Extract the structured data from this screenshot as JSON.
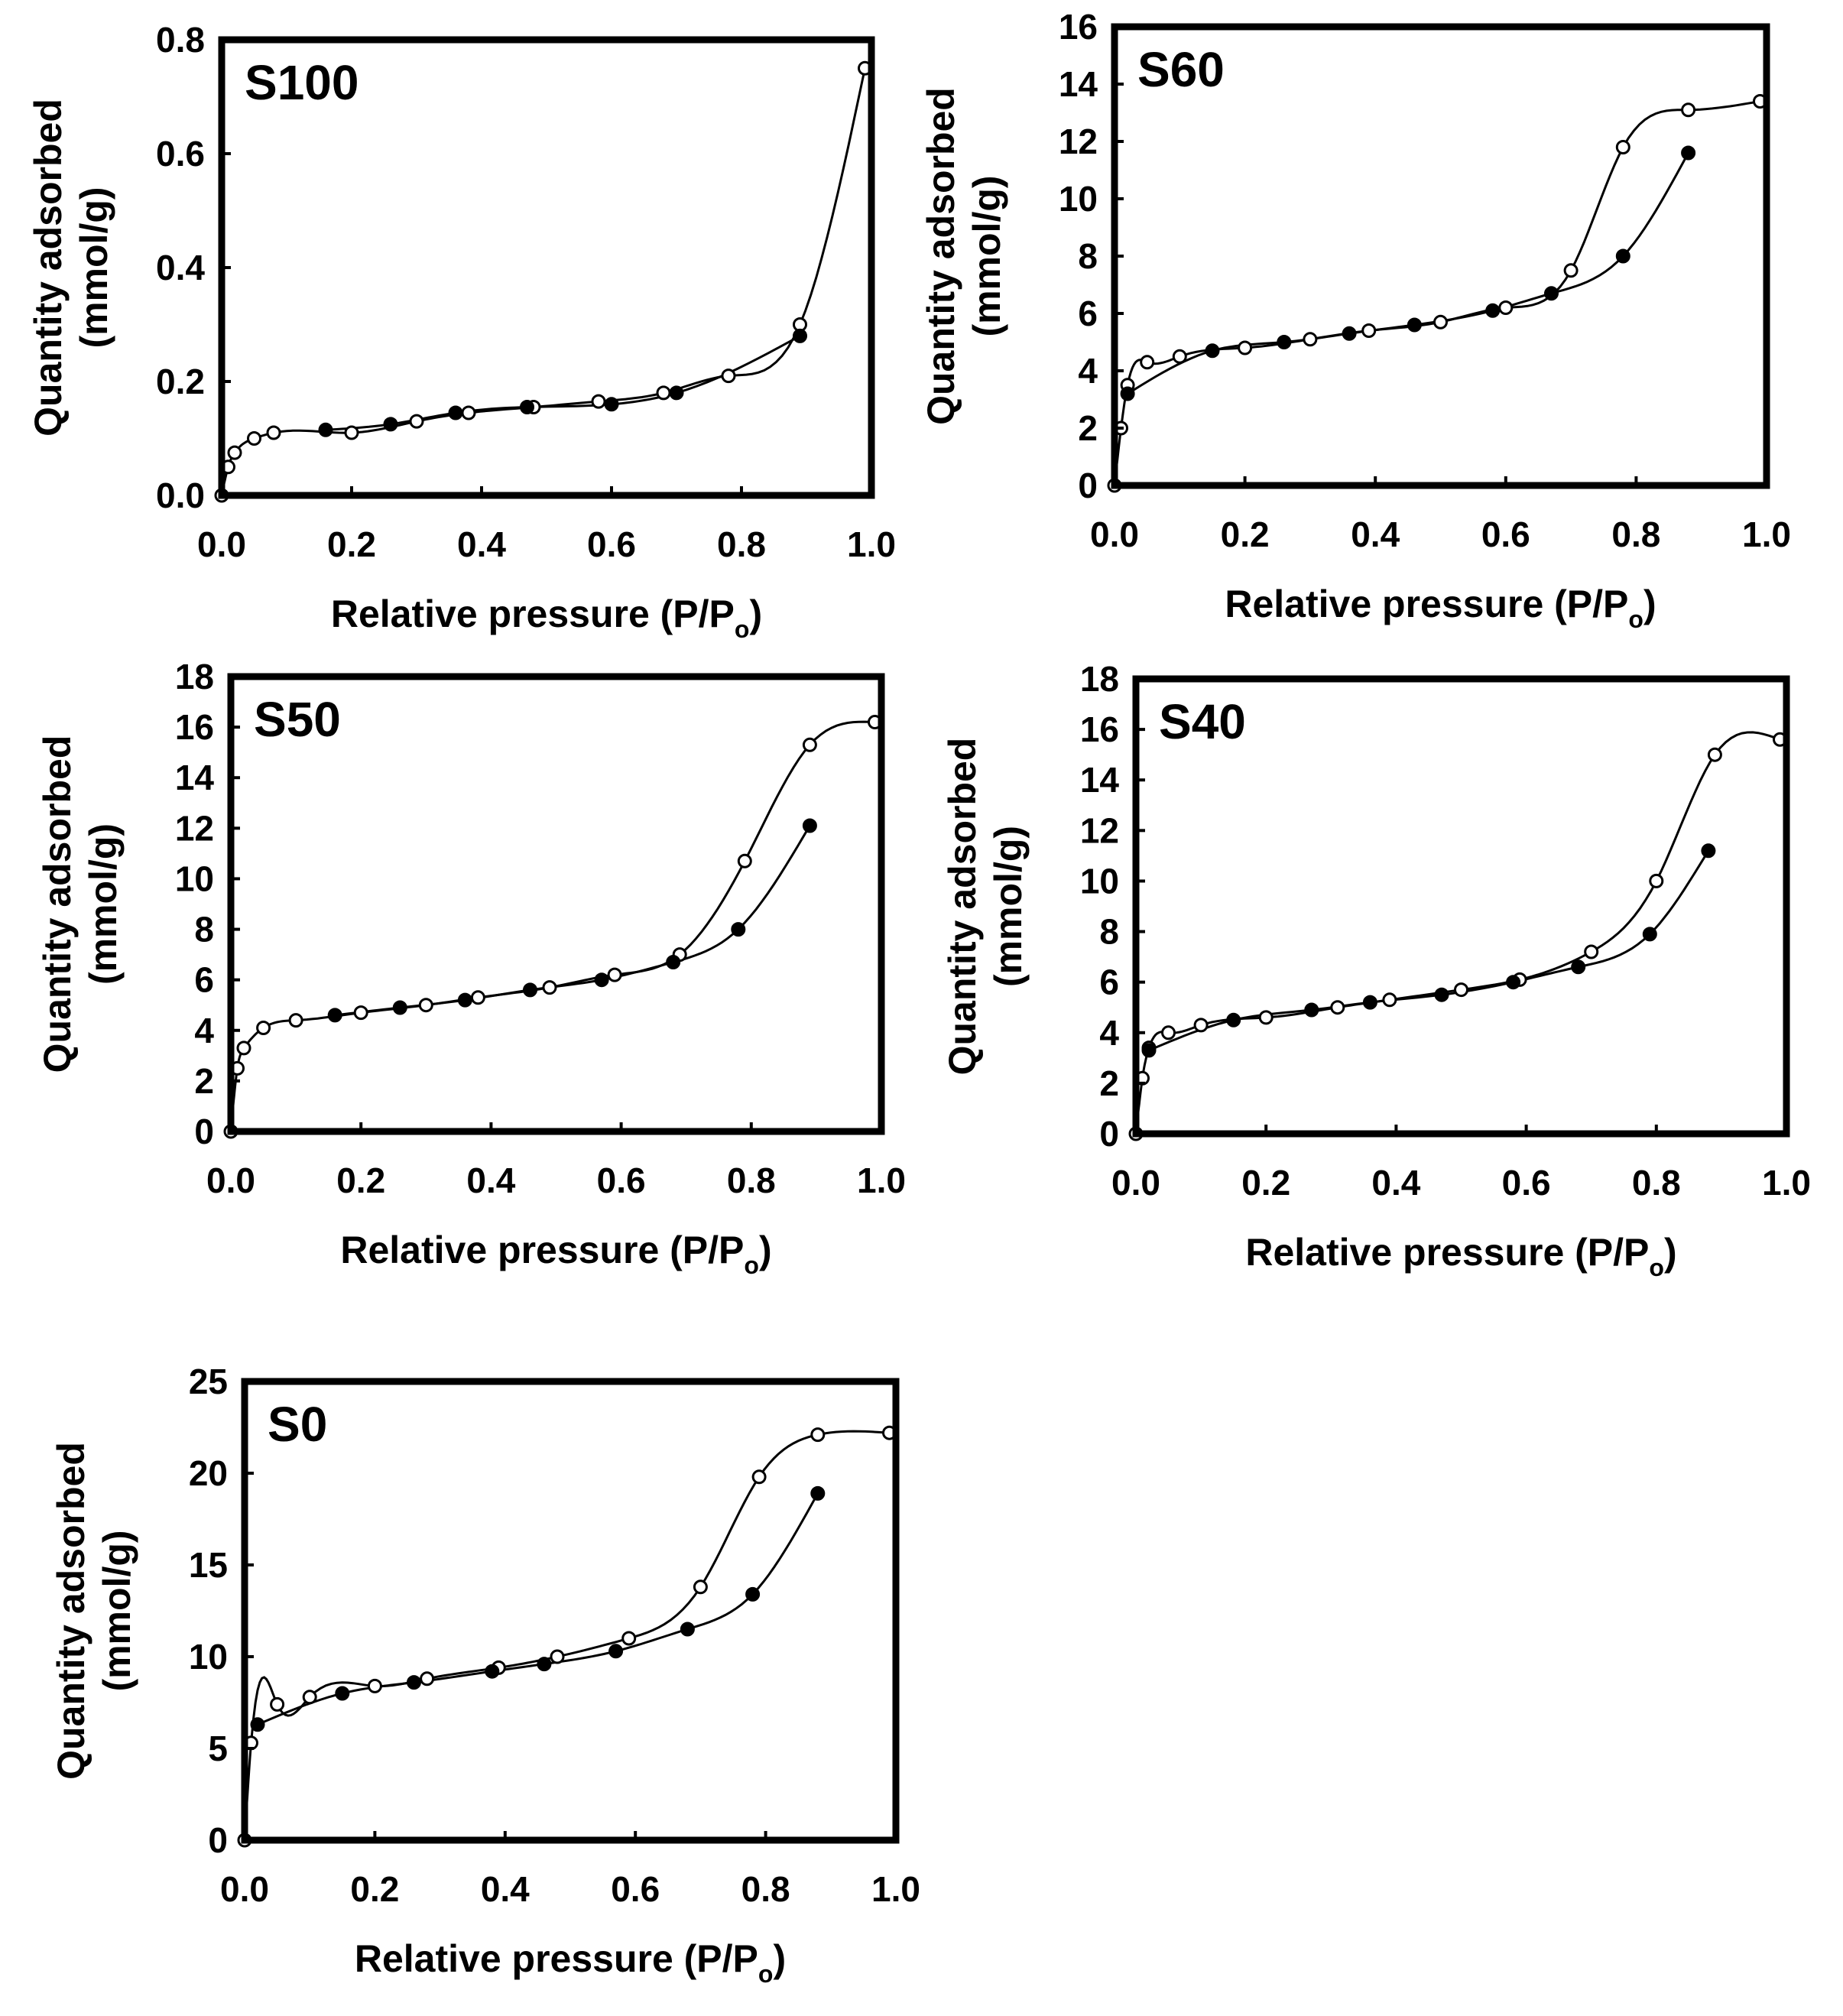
{
  "chart_data": [
    {
      "type": "scatter",
      "title": "S100",
      "xlabel": "Relative pressure (P/P",
      "xlabel_sub": "o",
      "xlabel_close": ")",
      "ylabel_line1": "Quantity adsorbed",
      "ylabel_line2": "(mmol/g)",
      "xlim": [
        0,
        1.0
      ],
      "ylim": [
        0,
        0.8
      ],
      "xticks": [
        "0.0",
        "0.2",
        "0.4",
        "0.6",
        "0.8",
        "1.0"
      ],
      "yticks": [
        "0.0",
        "0.2",
        "0.4",
        "0.6",
        "0.8"
      ],
      "series": [
        {
          "marker": "open",
          "x": [
            0.0,
            0.01,
            0.02,
            0.05,
            0.08,
            0.2,
            0.3,
            0.38,
            0.48,
            0.58,
            0.68,
            0.78,
            0.89,
            0.99
          ],
          "y": [
            0.0,
            0.05,
            0.075,
            0.1,
            0.11,
            0.11,
            0.13,
            0.145,
            0.155,
            0.165,
            0.18,
            0.21,
            0.3,
            0.75
          ]
        },
        {
          "marker": "filled",
          "x": [
            0.16,
            0.26,
            0.36,
            0.47,
            0.6,
            0.7,
            0.89
          ],
          "y": [
            0.115,
            0.125,
            0.145,
            0.155,
            0.16,
            0.18,
            0.28
          ]
        }
      ]
    },
    {
      "type": "scatter",
      "title": "S60",
      "xlabel": "Relative pressure (P/P",
      "xlabel_sub": "o",
      "xlabel_close": ")",
      "ylabel_line1": "Quantity adsorbed",
      "ylabel_line2": "(mmol/g)",
      "xlim": [
        0,
        1.0
      ],
      "ylim": [
        0,
        16
      ],
      "xticks": [
        "0.0",
        "0.2",
        "0.4",
        "0.6",
        "0.8",
        "1.0"
      ],
      "yticks": [
        "0",
        "2",
        "4",
        "6",
        "8",
        "10",
        "12",
        "14",
        "16"
      ],
      "series": [
        {
          "marker": "open",
          "x": [
            0.0,
            0.01,
            0.02,
            0.05,
            0.1,
            0.2,
            0.3,
            0.39,
            0.5,
            0.6,
            0.7,
            0.78,
            0.88,
            0.99
          ],
          "y": [
            0.0,
            2.0,
            3.5,
            4.3,
            4.5,
            4.8,
            5.1,
            5.4,
            5.7,
            6.2,
            7.5,
            11.8,
            13.1,
            13.4
          ]
        },
        {
          "marker": "filled",
          "x": [
            0.02,
            0.15,
            0.26,
            0.36,
            0.46,
            0.58,
            0.67,
            0.78,
            0.88
          ],
          "y": [
            3.2,
            4.7,
            5.0,
            5.3,
            5.6,
            6.1,
            6.7,
            8.0,
            11.6
          ]
        }
      ]
    },
    {
      "type": "scatter",
      "title": "S50",
      "xlabel": "Relative pressure (P/P",
      "xlabel_sub": "o",
      "xlabel_close": ")",
      "ylabel_line1": "Quantity adsorbed",
      "ylabel_line2": "(mmol/g)",
      "xlim": [
        0,
        1.0
      ],
      "ylim": [
        0,
        18
      ],
      "xticks": [
        "0.0",
        "0.2",
        "0.4",
        "0.6",
        "0.8",
        "1.0"
      ],
      "yticks": [
        "0",
        "2",
        "4",
        "6",
        "8",
        "10",
        "12",
        "14",
        "16",
        "18"
      ],
      "series": [
        {
          "marker": "open",
          "x": [
            0.0,
            0.01,
            0.02,
            0.05,
            0.1,
            0.2,
            0.3,
            0.38,
            0.49,
            0.59,
            0.69,
            0.79,
            0.89,
            0.99
          ],
          "y": [
            0.0,
            2.5,
            3.3,
            4.1,
            4.4,
            4.7,
            5.0,
            5.3,
            5.7,
            6.2,
            7.0,
            10.7,
            15.3,
            16.2
          ]
        },
        {
          "marker": "filled",
          "x": [
            0.16,
            0.26,
            0.36,
            0.46,
            0.57,
            0.68,
            0.78,
            0.89
          ],
          "y": [
            4.6,
            4.9,
            5.2,
            5.6,
            6.0,
            6.7,
            8.0,
            12.1
          ]
        }
      ]
    },
    {
      "type": "scatter",
      "title": "S40",
      "xlabel": "Relative pressure (P/P",
      "xlabel_sub": "o",
      "xlabel_close": ")",
      "ylabel_line1": "Quantity adsorbed",
      "ylabel_line2": "(mmol/g)",
      "xlim": [
        0,
        1.0
      ],
      "ylim": [
        0,
        18
      ],
      "xticks": [
        "0.0",
        "0.2",
        "0.4",
        "0.6",
        "0.8",
        "1.0"
      ],
      "yticks": [
        "0",
        "2",
        "4",
        "6",
        "8",
        "10",
        "12",
        "14",
        "16",
        "18"
      ],
      "series": [
        {
          "marker": "open",
          "x": [
            0.0,
            0.01,
            0.02,
            0.05,
            0.1,
            0.2,
            0.31,
            0.39,
            0.5,
            0.59,
            0.7,
            0.8,
            0.89,
            0.99
          ],
          "y": [
            0.0,
            2.2,
            3.4,
            4.0,
            4.3,
            4.6,
            5.0,
            5.3,
            5.7,
            6.1,
            7.2,
            10.0,
            15.0,
            15.6
          ]
        },
        {
          "marker": "filled",
          "x": [
            0.02,
            0.15,
            0.27,
            0.36,
            0.47,
            0.58,
            0.68,
            0.79,
            0.88
          ],
          "y": [
            3.3,
            4.5,
            4.9,
            5.2,
            5.5,
            6.0,
            6.6,
            7.9,
            11.2
          ]
        }
      ]
    },
    {
      "type": "scatter",
      "title": "S0",
      "xlabel": "Relative pressure (P/P",
      "xlabel_sub": "o",
      "xlabel_close": ")",
      "ylabel_line1": "Quantity adsorbed",
      "ylabel_line2": "(mmol/g)",
      "xlim": [
        0,
        1.0
      ],
      "ylim": [
        0,
        25
      ],
      "xticks": [
        "0.0",
        "0.2",
        "0.4",
        "0.6",
        "0.8",
        "1.0"
      ],
      "yticks": [
        "0",
        "5",
        "10",
        "15",
        "20",
        "25"
      ],
      "series": [
        {
          "marker": "open",
          "x": [
            0.0,
            0.01,
            0.05,
            0.1,
            0.2,
            0.28,
            0.39,
            0.48,
            0.59,
            0.7,
            0.79,
            0.88,
            0.99
          ],
          "y": [
            0.0,
            5.3,
            7.4,
            7.8,
            8.4,
            8.8,
            9.4,
            10.0,
            11.0,
            13.8,
            19.8,
            22.1,
            22.2
          ]
        },
        {
          "marker": "filled",
          "x": [
            0.02,
            0.15,
            0.26,
            0.38,
            0.46,
            0.57,
            0.68,
            0.78,
            0.88
          ],
          "y": [
            6.3,
            8.0,
            8.6,
            9.2,
            9.6,
            10.3,
            11.5,
            13.4,
            18.9
          ]
        }
      ]
    }
  ]
}
